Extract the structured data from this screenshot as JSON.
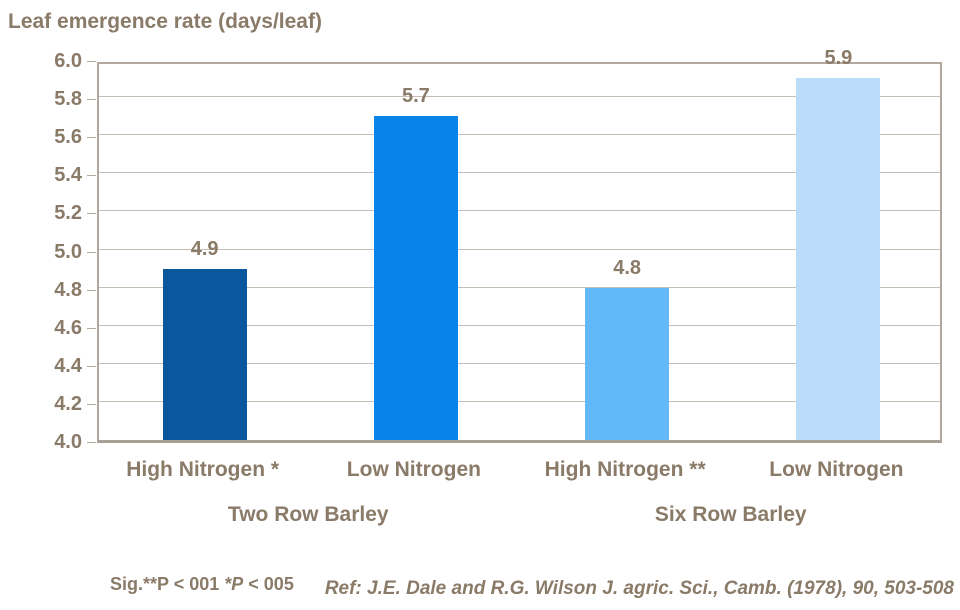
{
  "title": "Leaf emergence rate (days/leaf)",
  "chart_data": {
    "type": "bar",
    "title": "Leaf emergence rate (days/leaf)",
    "categories": [
      "High Nitrogen *",
      "Low Nitrogen",
      "High Nitrogen **",
      "Low Nitrogen"
    ],
    "groups": [
      "Two Row Barley",
      "Six Row Barley"
    ],
    "values": [
      4.9,
      5.7,
      4.8,
      5.9
    ],
    "value_labels": [
      "4.9",
      "5.7",
      "4.8",
      "5.9"
    ],
    "bar_colors": [
      "#0b579e",
      "#0884e8",
      "#63b8fa",
      "#b9dcfb"
    ],
    "xlabel": "",
    "ylabel": "Leaf emergence rate (days/leaf)",
    "ylim": [
      4.0,
      6.0
    ],
    "ytick_labels": [
      "4.0",
      "4.2",
      "4.4",
      "4.6",
      "4.8",
      "5.0",
      "5.2",
      "5.4",
      "5.6",
      "5.8",
      "6.0"
    ],
    "grid": true,
    "legend": "none"
  },
  "footnotes": {
    "sig_parts": [
      "Sig.**P < 001 ",
      "*P",
      " < 005"
    ],
    "ref": "Ref: J.E. Dale and R.G. Wilson J. agric. Sci., Camb. (1978), 90, 503-508"
  },
  "colors": {
    "background": "#ffffff",
    "text": "#8a7a68",
    "gridline": "#c7bfb5",
    "axis_border": "#b2a89e",
    "bottom_axis": "#a9a096"
  }
}
